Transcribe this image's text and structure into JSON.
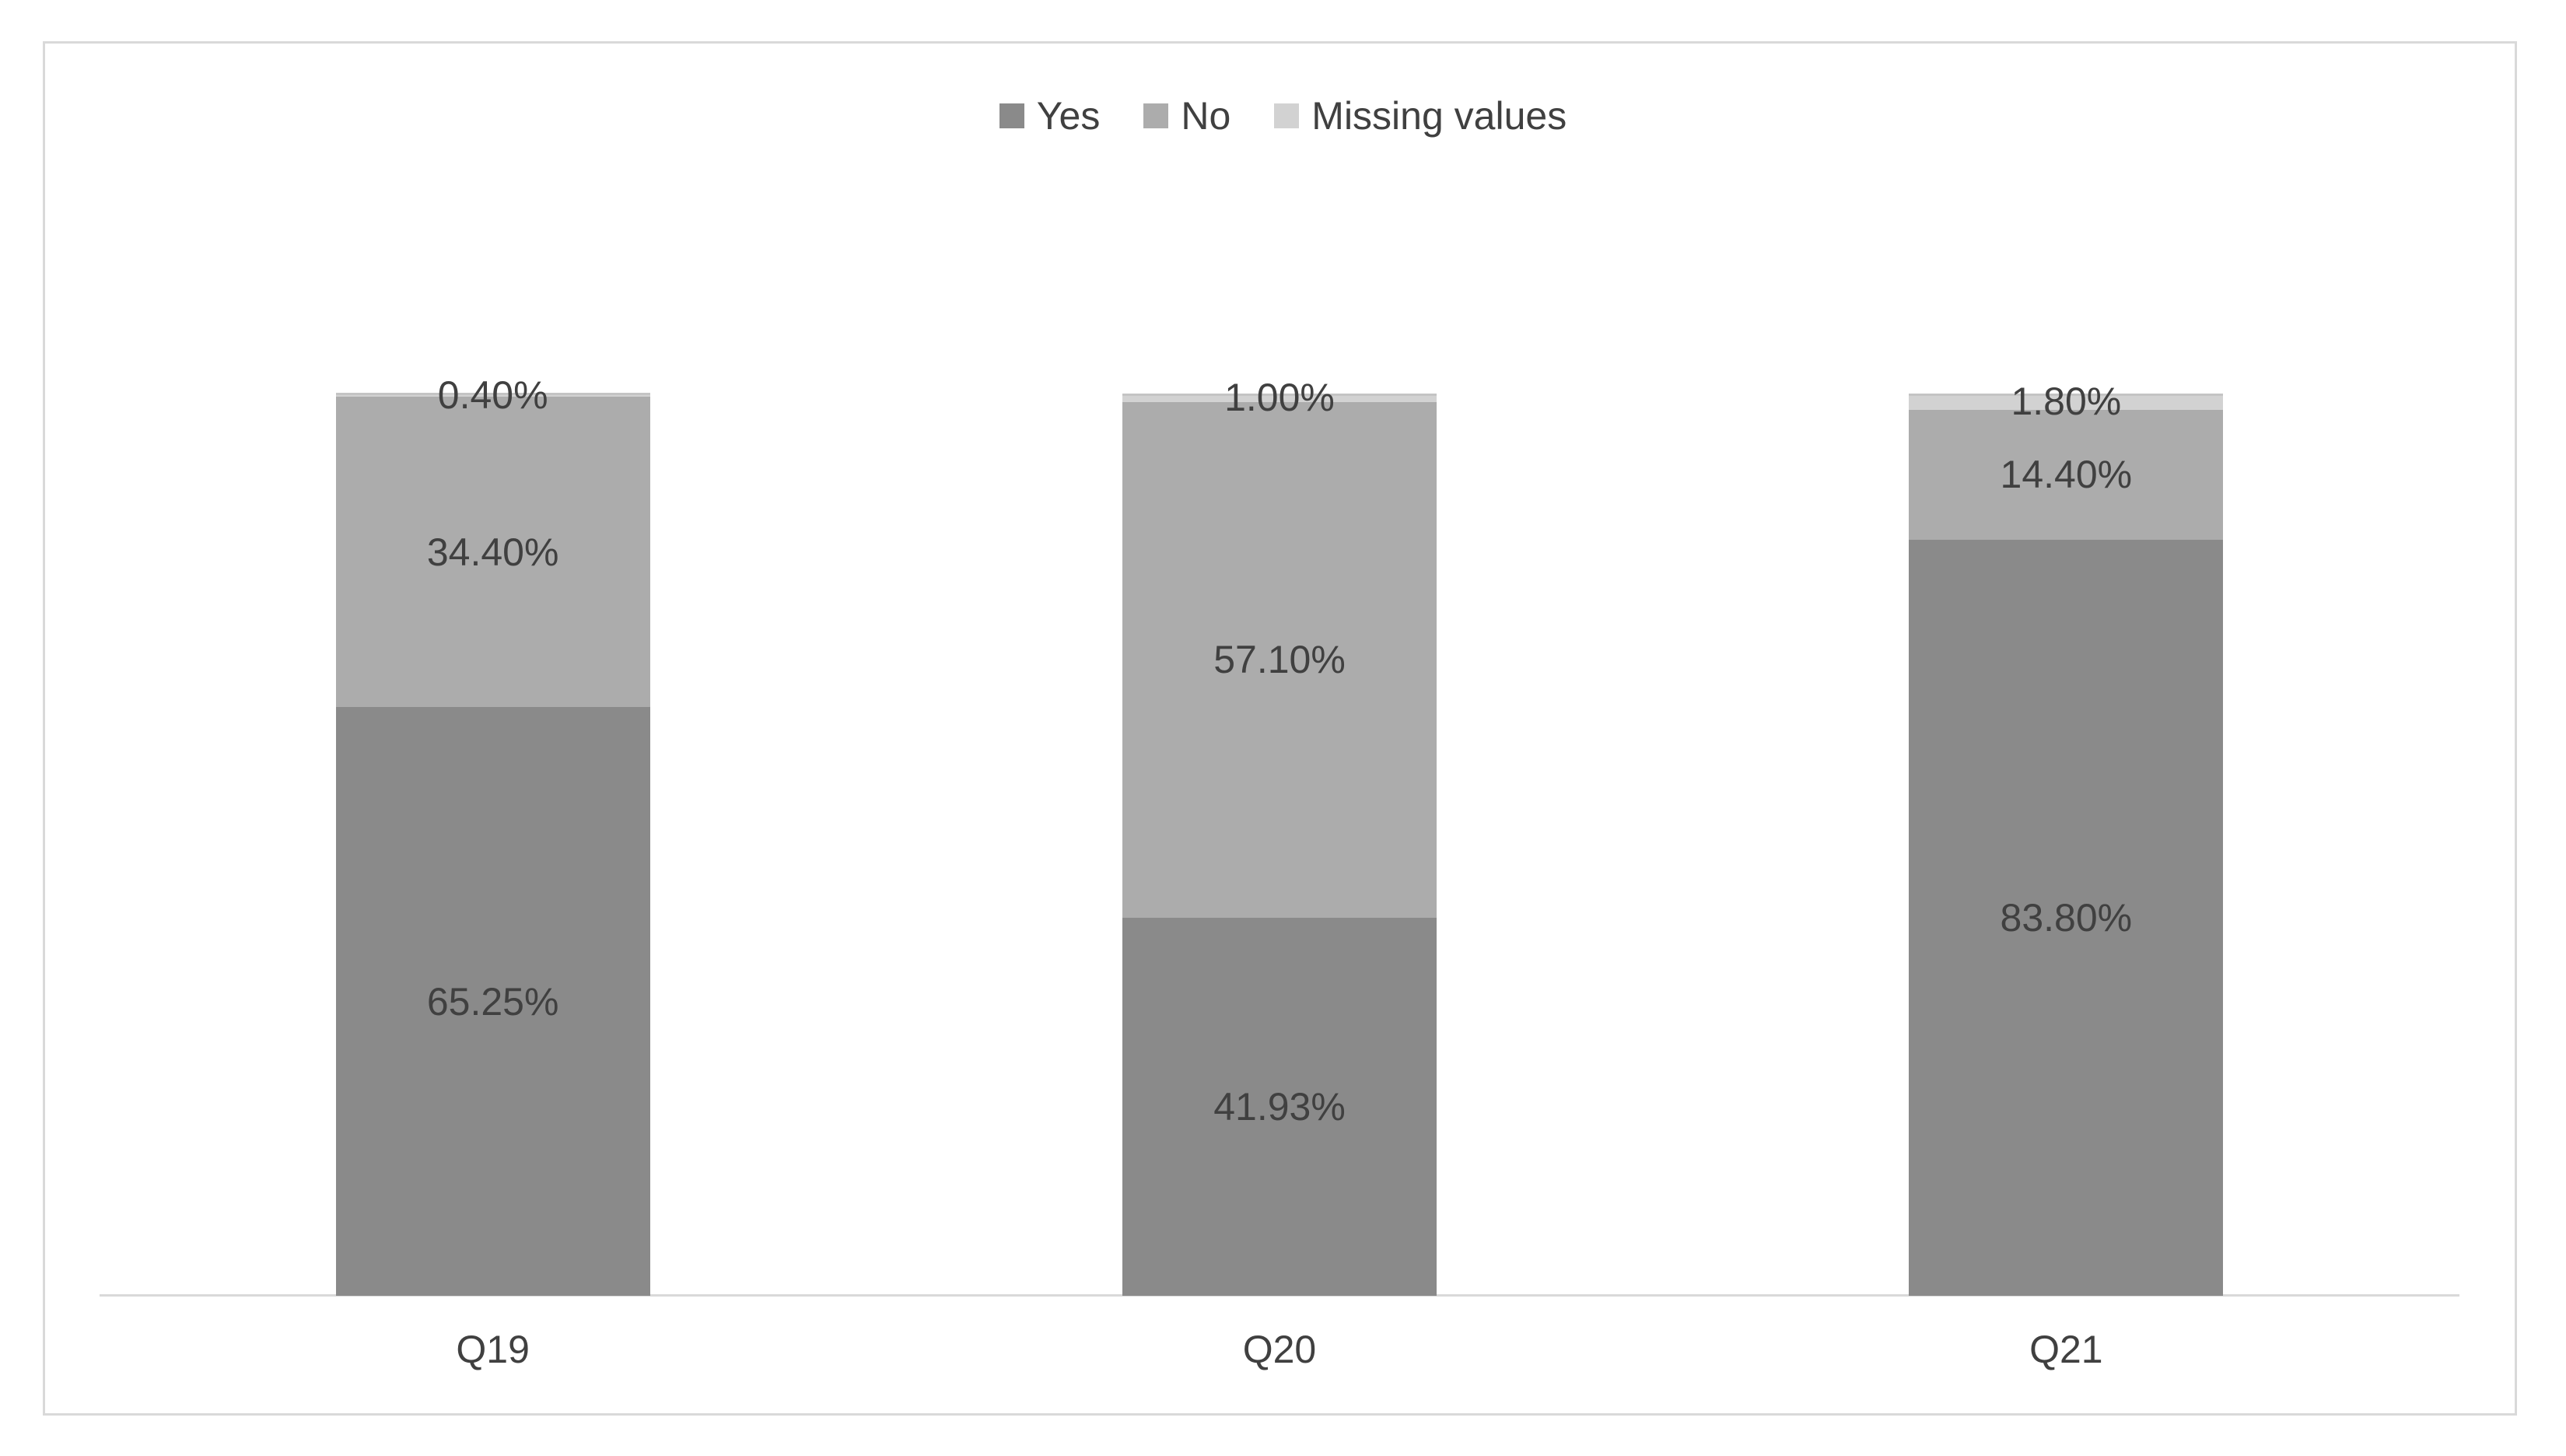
{
  "chart_data": {
    "type": "bar",
    "stacked": true,
    "title": "",
    "categories": [
      "Q19",
      "Q20",
      "Q21"
    ],
    "series": [
      {
        "name": "Yes",
        "color": "#8A8A8A",
        "values": [
          65.25,
          41.93,
          83.8
        ],
        "labels": [
          "65.25%",
          "41.93%",
          "83.80%"
        ]
      },
      {
        "name": "No",
        "color": "#ACACAC",
        "values": [
          34.4,
          57.1,
          14.4
        ],
        "labels": [
          "34.40%",
          "57.10%",
          "14.40%"
        ]
      },
      {
        "name": "Missing values",
        "color": "#D2D2D2",
        "values": [
          0.4,
          1.0,
          1.8
        ],
        "labels": [
          "0.40%",
          "1.00%",
          "1.80%"
        ]
      }
    ],
    "legend_position": "top",
    "grid": false,
    "xlabel": "",
    "ylabel": "",
    "ylim_percent": [
      0,
      100
    ],
    "colors": {
      "frame_border": "#D9D9D9",
      "axis_line": "#D9D9D9",
      "label_text": "#404040",
      "segment_top_edge": "#C4C4C4",
      "background": "#FFFFFF"
    }
  }
}
